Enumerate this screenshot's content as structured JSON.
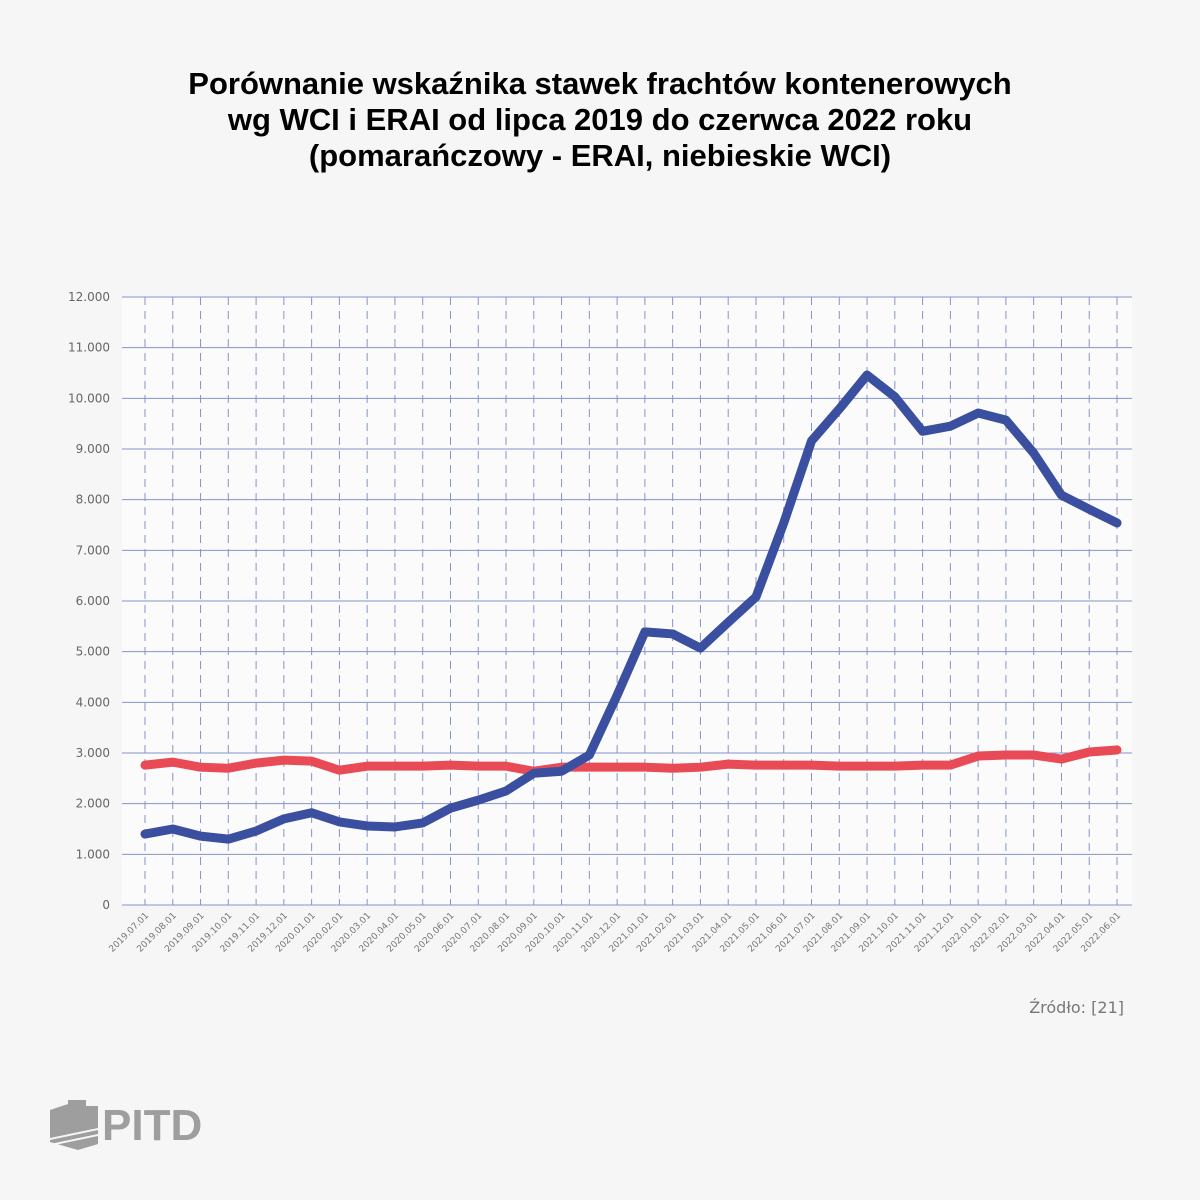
{
  "title_lines": [
    "Porównanie wskaźnika stawek frachtów kontenerowych",
    "wg WCI i ERAI od lipca 2019 do czerwca 2022 roku",
    "(pomarańczowy - ERAI, niebieskie WCI)"
  ],
  "source": "Źródło: [21]",
  "logo_text": "PITD",
  "colors": {
    "wci": "#3a4f9f",
    "erai": "#e84b55",
    "grid": "#8593cc"
  },
  "chart_data": {
    "type": "line",
    "title": "Porównanie wskaźnika stawek frachtów kontenerowych wg WCI i ERAI od lipca 2019 do czerwca 2022 roku (pomarańczowy - ERAI, niebieskie WCI)",
    "xlabel": "",
    "ylabel": "",
    "ylim": [
      0,
      12000
    ],
    "yticks": [
      0,
      1000,
      2000,
      3000,
      4000,
      5000,
      6000,
      7000,
      8000,
      9000,
      10000,
      11000,
      12000
    ],
    "ytick_labels": [
      "0",
      "1.000",
      "2.000",
      "3.000",
      "4.000",
      "5.000",
      "6.000",
      "7.000",
      "8.000",
      "9.000",
      "10.000",
      "11.000",
      "12.000"
    ],
    "grid": true,
    "categories": [
      "2019.07.01",
      "2019.08.01",
      "2019.09.01",
      "2019.10.01",
      "2019.11.01",
      "2019.12.01",
      "2020.01.01",
      "2020.02.01",
      "2020.03.01",
      "2020.04.01",
      "2020.05.01",
      "2020.06.01",
      "2020.07.01",
      "2020.08.01",
      "2020.09.01",
      "2020.10.01",
      "2020.11.01",
      "2020.12.01",
      "2021.01.01",
      "2021.02.01",
      "2021.03.01",
      "2021.04.01",
      "2021.05.01",
      "2021.06.01",
      "2021.07.01",
      "2021.08.01",
      "2021.09.01",
      "2021.10.01",
      "2021.11.01",
      "2021.12.01",
      "2022.01.01",
      "2022.02.01",
      "2022.03.01",
      "2022.04.01",
      "2022.05.01",
      "2022.06.01"
    ],
    "series": [
      {
        "name": "WCI",
        "color": "#3a4f9f",
        "values": [
          1400,
          1500,
          1360,
          1300,
          1460,
          1700,
          1820,
          1640,
          1560,
          1540,
          1620,
          1910,
          2070,
          2250,
          2600,
          2640,
          2960,
          4140,
          5390,
          5350,
          5070,
          5580,
          6080,
          7540,
          9160,
          9790,
          10460,
          10030,
          9350,
          9450,
          9710,
          9570,
          8920,
          8090,
          7810,
          7540
        ]
      },
      {
        "name": "ERAI",
        "color": "#e84b55",
        "values": [
          2760,
          2820,
          2720,
          2700,
          2800,
          2860,
          2840,
          2660,
          2740,
          2740,
          2740,
          2760,
          2740,
          2740,
          2640,
          2720,
          2720,
          2720,
          2720,
          2700,
          2720,
          2780,
          2760,
          2760,
          2760,
          2740,
          2740,
          2740,
          2760,
          2760,
          2940,
          2960,
          2960,
          2880,
          3020,
          3060
        ]
      }
    ]
  }
}
